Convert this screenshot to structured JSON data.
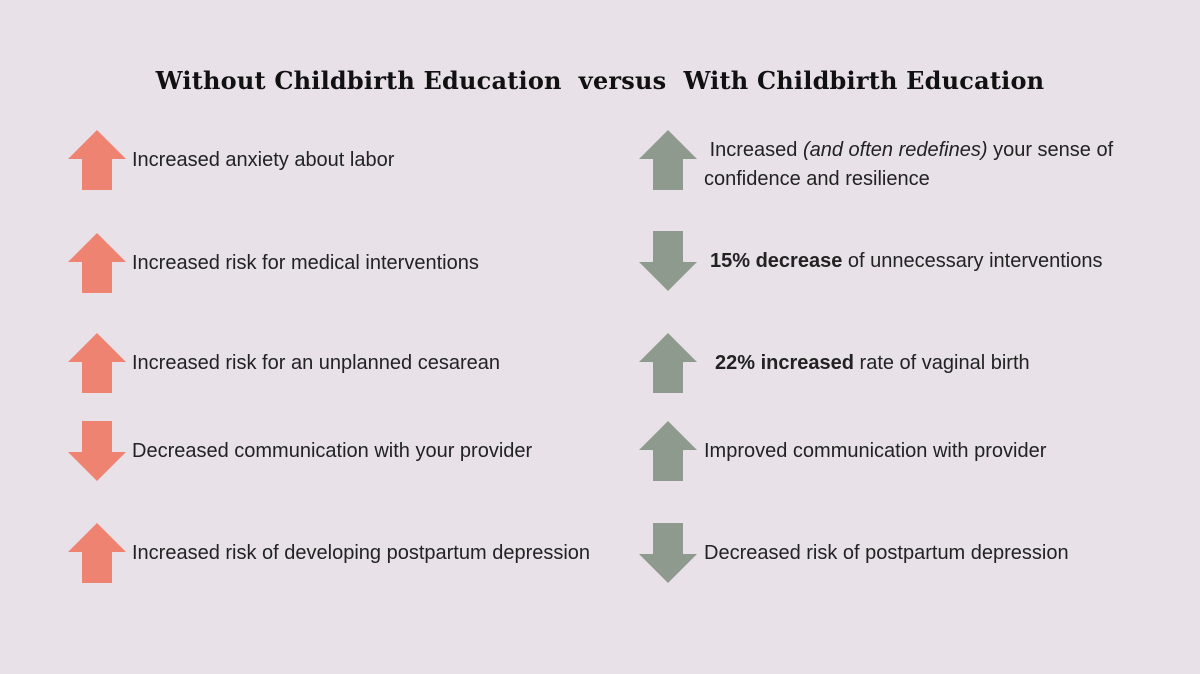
{
  "title": "Without Childbirth Education  versus  With Childbirth Education",
  "colors": {
    "background": "#e8e1e8",
    "without_arrow": "#ef8372",
    "with_arrow": "#8f9a8f"
  },
  "without": [
    {
      "direction": "up",
      "icon": "arrow-up-icon",
      "text": "Increased anxiety about labor"
    },
    {
      "direction": "up",
      "icon": "arrow-up-icon",
      "text": "Increased risk for medical interventions"
    },
    {
      "direction": "up",
      "icon": "arrow-up-icon",
      "text": "Increased risk for an unplanned cesarean"
    },
    {
      "direction": "down",
      "icon": "arrow-down-icon",
      "text": "Decreased communication with your provider"
    },
    {
      "direction": "up",
      "icon": "arrow-up-icon",
      "text": "Increased risk of developing postpartum depression"
    }
  ],
  "with": [
    {
      "direction": "up",
      "icon": "arrow-up-icon",
      "parts": {
        "before": "Increased ",
        "italic": "(and often redefines)",
        "after": " your sense of",
        "line2": "confidence and resilience"
      }
    },
    {
      "direction": "down",
      "icon": "arrow-down-icon",
      "parts": {
        "bold": "15% decrease",
        "rest": " of unnecessary interventions"
      }
    },
    {
      "direction": "up",
      "icon": "arrow-up-icon",
      "parts": {
        "bold": "22% increased",
        "rest": " rate of vaginal birth"
      }
    },
    {
      "direction": "up",
      "icon": "arrow-up-icon",
      "parts": {
        "text": "Improved communication with provider"
      }
    },
    {
      "direction": "down",
      "icon": "arrow-down-icon",
      "parts": {
        "text": "Decreased risk of postpartum depression"
      }
    }
  ]
}
